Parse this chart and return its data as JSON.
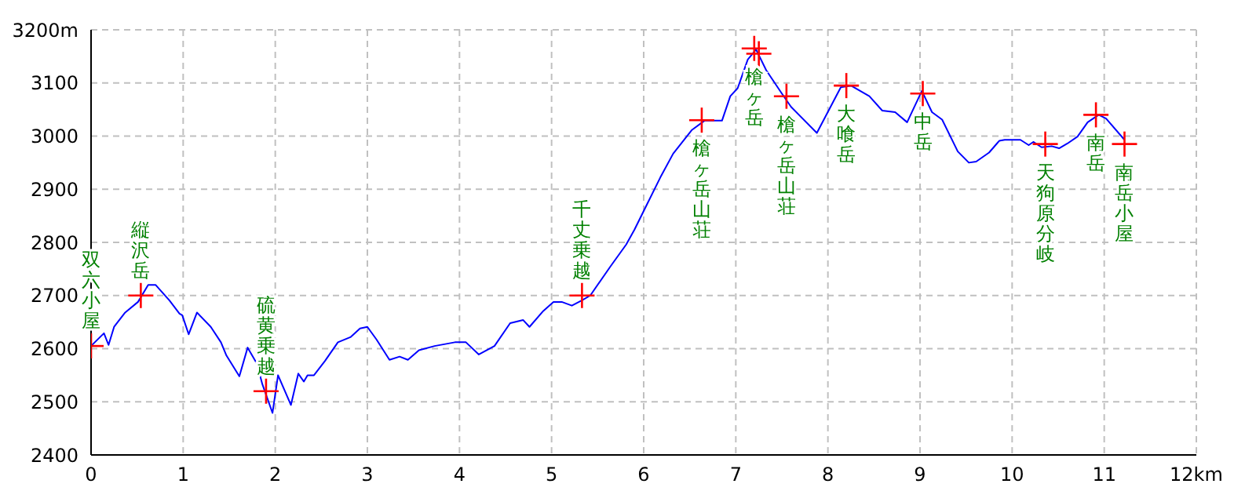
{
  "chart_data": {
    "type": "line",
    "grid": true,
    "xlim": [
      0,
      12
    ],
    "ylim": [
      2400,
      3200
    ],
    "xticks": [
      0,
      1,
      2,
      3,
      4,
      5,
      6,
      7,
      8,
      9,
      10,
      11,
      {
        "value": 12,
        "label": "12km"
      }
    ],
    "yticks": [
      2400,
      2500,
      2600,
      2700,
      2800,
      2900,
      3000,
      3100,
      {
        "value": 3200,
        "label": "3200m"
      }
    ],
    "series": [
      {
        "color": "#0000ff",
        "marker": "none",
        "x": [
          0,
          0.14,
          0.19,
          0.25,
          0.37,
          0.51,
          0.62,
          0.7,
          0.85,
          0.96,
          0.99,
          1.06,
          1.15,
          1.3,
          1.41,
          1.47,
          1.61,
          1.7,
          1.8,
          1.86,
          1.97,
          2.03,
          2.17,
          2.25,
          2.31,
          2.35,
          2.42,
          2.54,
          2.68,
          2.82,
          2.92,
          3,
          3.1,
          3.24,
          3.35,
          3.44,
          3.56,
          3.73,
          3.95,
          4.07,
          4.21,
          4.38,
          4.55,
          4.69,
          4.76,
          4.91,
          5.02,
          5.11,
          5.22,
          5.33,
          5.42,
          5.64,
          5.81,
          5.9,
          6.04,
          6.18,
          6.32,
          6.52,
          6.66,
          6.85,
          6.94,
          7.02,
          7.13,
          7.22,
          7.33,
          7.5,
          7.6,
          7.88,
          8.14,
          8.25,
          8.45,
          8.59,
          8.73,
          8.86,
          9.02,
          9.13,
          9.24,
          9.41,
          9.53,
          9.61,
          9.75,
          9.86,
          9.92,
          10.09,
          10.18,
          10.23,
          10.32,
          10.43,
          10.51,
          10.6,
          10.71,
          10.82,
          10.94,
          11.02,
          11.22
        ],
        "values": [
          2605,
          2629,
          2607,
          2641,
          2668,
          2688,
          2720,
          2720,
          2691,
          2666,
          2663,
          2627,
          2668,
          2641,
          2612,
          2587,
          2548,
          2602,
          2572,
          2533,
          2479,
          2550,
          2494,
          2553,
          2538,
          2550,
          2550,
          2577,
          2612,
          2622,
          2638,
          2641,
          2617,
          2579,
          2585,
          2579,
          2597,
          2605,
          2612,
          2612,
          2589,
          2605,
          2648,
          2654,
          2641,
          2671,
          2688,
          2688,
          2681,
          2691,
          2700,
          2755,
          2796,
          2824,
          2873,
          2922,
          2967,
          3011,
          3029,
          3029,
          3075,
          3090,
          3144,
          3163,
          3124,
          3080,
          3055,
          3006,
          3092,
          3095,
          3075,
          3048,
          3045,
          3026,
          3085,
          3045,
          3031,
          2971,
          2950,
          2952,
          2969,
          2991,
          2993,
          2993,
          2983,
          2989,
          2979,
          2981,
          2977,
          2986,
          2999,
          3026,
          3040,
          3033,
          2993
        ]
      },
      {
        "type": "scatter",
        "color": "#ff0000",
        "marker": "cross",
        "x": [
          0,
          0.54,
          1.9,
          5.33,
          6.63,
          7.2,
          7.25,
          7.55,
          8.2,
          9.03,
          10.36,
          10.91,
          11.22
        ],
        "values": [
          2605,
          2700,
          2520,
          2700,
          3030,
          3165,
          3155,
          3075,
          3095,
          3080,
          2985,
          3040,
          2985
        ]
      }
    ],
    "annotations": [
      {
        "text": "双六小屋",
        "x": 0,
        "y": 2605
      },
      {
        "text": "縦沢岳",
        "x": 0.54,
        "y": 2700
      },
      {
        "text": "硫黄乗越",
        "x": 1.9,
        "y": 2520
      },
      {
        "text": "千丈乗越",
        "x": 5.33,
        "y": 2700
      },
      {
        "text": "槍ヶ岳山荘",
        "x": 6.63,
        "y": 3030
      },
      {
        "text": "槍ヶ岳",
        "x": 7.2,
        "y": 3165
      },
      {
        "text": "槍ヶ岳山荘",
        "x": 7.55,
        "y": 3075
      },
      {
        "text": "大喰岳",
        "x": 8.2,
        "y": 3095
      },
      {
        "text": "中岳",
        "x": 9.03,
        "y": 3080
      },
      {
        "text": "天狗原分岐",
        "x": 10.36,
        "y": 2985
      },
      {
        "text": "南岳",
        "x": 10.91,
        "y": 3040
      },
      {
        "text": "南岳小屋",
        "x": 11.22,
        "y": 2985
      }
    ]
  }
}
